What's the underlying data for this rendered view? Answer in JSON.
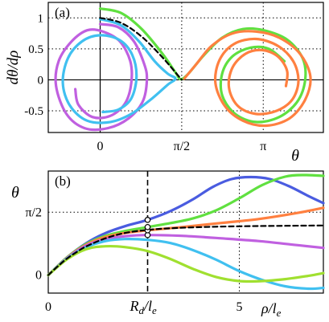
{
  "chart_data": [
    {
      "type": "line",
      "panel_label": "(a)",
      "xlabel": "θ",
      "ylabel": "dθ/dρ",
      "xlim": [
        -1.0,
        4.3
      ],
      "ylim": [
        -0.85,
        1.25
      ],
      "x_ticks": [
        {
          "v": 0,
          "label": "0"
        },
        {
          "v": 1.5708,
          "label": "π/2"
        },
        {
          "v": 3.1416,
          "label": "π"
        }
      ],
      "y_ticks": [
        {
          "v": -0.5,
          "label": "-0.5"
        },
        {
          "v": 0,
          "label": "0"
        },
        {
          "v": 0.5,
          "label": "0.5"
        },
        {
          "v": 1,
          "label": "1"
        }
      ],
      "series": [
        {
          "color": "#c060e0",
          "dash": false,
          "points": [
            [
              0.0,
              0.9
            ],
            [
              0.35,
              0.85
            ],
            [
              0.65,
              0.62
            ],
            [
              0.85,
              0.25
            ],
            [
              0.9,
              0.0
            ],
            [
              0.82,
              -0.35
            ],
            [
              0.55,
              -0.62
            ],
            [
              0.15,
              -0.78
            ],
            [
              -0.3,
              -0.78
            ],
            [
              -0.65,
              -0.55
            ],
            [
              -0.85,
              -0.1
            ],
            [
              -0.8,
              0.3
            ],
            [
              -0.55,
              0.62
            ],
            [
              -0.25,
              0.8
            ],
            [
              0.05,
              0.78
            ],
            [
              0.38,
              0.62
            ],
            [
              0.58,
              0.3
            ],
            [
              0.6,
              -0.05
            ],
            [
              0.48,
              -0.38
            ],
            [
              0.2,
              -0.58
            ],
            [
              -0.15,
              -0.6
            ],
            [
              -0.42,
              -0.4
            ],
            [
              -0.48,
              -0.15
            ]
          ]
        },
        {
          "color": "#40c0f0",
          "dash": false,
          "points": [
            [
              0.0,
              0.98
            ],
            [
              0.4,
              0.88
            ],
            [
              0.75,
              0.62
            ],
            [
              1.05,
              0.3
            ],
            [
              1.3,
              0.1
            ],
            [
              1.45,
              0.02
            ],
            [
              1.3,
              -0.08
            ],
            [
              1.0,
              -0.3
            ],
            [
              0.6,
              -0.55
            ],
            [
              0.2,
              -0.68
            ],
            [
              -0.25,
              -0.66
            ],
            [
              -0.58,
              -0.42
            ],
            [
              -0.72,
              -0.05
            ],
            [
              -0.62,
              0.35
            ],
            [
              -0.35,
              0.62
            ],
            [
              0.0,
              0.72
            ],
            [
              0.38,
              0.64
            ],
            [
              0.62,
              0.4
            ],
            [
              0.7,
              0.05
            ],
            [
              0.6,
              -0.3
            ],
            [
              0.35,
              -0.48
            ],
            [
              0.05,
              -0.52
            ]
          ]
        },
        {
          "color": "#60e040",
          "dash": false,
          "points": [
            [
              0.0,
              1.15
            ],
            [
              0.4,
              1.08
            ],
            [
              0.8,
              0.82
            ],
            [
              1.2,
              0.42
            ],
            [
              1.45,
              0.12
            ],
            [
              1.55,
              0.01
            ],
            [
              1.7,
              0.1
            ],
            [
              2.0,
              0.4
            ],
            [
              2.35,
              0.68
            ],
            [
              2.75,
              0.82
            ],
            [
              3.15,
              0.8
            ],
            [
              3.6,
              0.65
            ],
            [
              3.9,
              0.35
            ],
            [
              3.95,
              0.0
            ],
            [
              3.8,
              -0.35
            ],
            [
              3.45,
              -0.6
            ],
            [
              3.0,
              -0.68
            ],
            [
              2.6,
              -0.55
            ],
            [
              2.35,
              -0.25
            ],
            [
              2.35,
              0.1
            ],
            [
              2.55,
              0.38
            ],
            [
              2.9,
              0.52
            ],
            [
              3.25,
              0.5
            ],
            [
              3.55,
              0.3
            ]
          ]
        },
        {
          "color": "#ff8040",
          "dash": false,
          "points": [
            [
              1.62,
              0.02
            ],
            [
              1.85,
              0.25
            ],
            [
              2.15,
              0.55
            ],
            [
              2.55,
              0.75
            ],
            [
              3.0,
              0.78
            ],
            [
              3.45,
              0.68
            ],
            [
              3.85,
              0.42
            ],
            [
              4.05,
              0.05
            ],
            [
              3.95,
              -0.32
            ],
            [
              3.65,
              -0.62
            ],
            [
              3.2,
              -0.74
            ],
            [
              2.75,
              -0.66
            ],
            [
              2.4,
              -0.42
            ],
            [
              2.22,
              -0.05
            ],
            [
              2.3,
              0.32
            ],
            [
              2.58,
              0.58
            ],
            [
              3.0,
              0.66
            ],
            [
              3.42,
              0.55
            ],
            [
              3.72,
              0.3
            ],
            [
              3.82,
              -0.02
            ],
            [
              3.7,
              -0.32
            ],
            [
              3.4,
              -0.5
            ],
            [
              3.0,
              -0.55
            ],
            [
              2.65,
              -0.42
            ],
            [
              2.48,
              -0.12
            ],
            [
              2.55,
              0.2
            ],
            [
              2.8,
              0.42
            ],
            [
              3.12,
              0.48
            ],
            [
              3.42,
              0.38
            ],
            [
              3.6,
              0.15
            ],
            [
              3.58,
              -0.1
            ]
          ]
        },
        {
          "color": "#000000",
          "dash": true,
          "points": [
            [
              0.0,
              1.0
            ],
            [
              0.3927,
              0.9239
            ],
            [
              0.7854,
              0.7071
            ],
            [
              1.1781,
              0.3827
            ],
            [
              1.5708,
              0.0
            ]
          ]
        }
      ]
    },
    {
      "type": "line",
      "panel_label": "(b)",
      "xlabel": "ρ/l",
      "xlabel_sub": "e",
      "ylabel": "θ",
      "xlim": [
        0,
        7.2
      ],
      "ylim": [
        -0.45,
        2.6
      ],
      "x_ticks": [
        {
          "v": 0,
          "label": "0"
        },
        {
          "v": 5,
          "label": "5"
        }
      ],
      "x_special": {
        "v": 2.6,
        "label": "R",
        "sub1": "d",
        "mid": "/l",
        "sub2": "e"
      },
      "y_ticks": [
        {
          "v": 0,
          "label": "0"
        },
        {
          "v": 1.5708,
          "label": "π/2"
        }
      ],
      "marker_x": 2.6,
      "marker_values": [
        1.0,
        1.12,
        1.2,
        1.38
      ],
      "series": [
        {
          "color": "#4a5ce0",
          "dash": false,
          "points": [
            [
              0,
              0
            ],
            [
              0.5,
              0.45
            ],
            [
              1.0,
              0.8
            ],
            [
              1.5,
              1.05
            ],
            [
              2.0,
              1.22
            ],
            [
              2.6,
              1.38
            ],
            [
              3.2,
              1.6
            ],
            [
              3.8,
              1.9
            ],
            [
              4.3,
              2.2
            ],
            [
              4.8,
              2.4
            ],
            [
              5.3,
              2.45
            ],
            [
              5.8,
              2.4
            ],
            [
              6.3,
              2.22
            ],
            [
              6.8,
              1.98
            ],
            [
              7.2,
              1.8
            ]
          ]
        },
        {
          "color": "#60e040",
          "dash": false,
          "points": [
            [
              0,
              0
            ],
            [
              0.5,
              0.45
            ],
            [
              1.0,
              0.78
            ],
            [
              1.5,
              0.98
            ],
            [
              2.0,
              1.1
            ],
            [
              2.6,
              1.2
            ],
            [
              3.2,
              1.3
            ],
            [
              3.8,
              1.42
            ],
            [
              4.4,
              1.62
            ],
            [
              5.0,
              1.92
            ],
            [
              5.6,
              2.25
            ],
            [
              6.2,
              2.46
            ],
            [
              6.7,
              2.5
            ],
            [
              7.2,
              2.48
            ]
          ]
        },
        {
          "color": "#ff8040",
          "dash": false,
          "points": [
            [
              0,
              0
            ],
            [
              0.5,
              0.44
            ],
            [
              1.0,
              0.76
            ],
            [
              1.5,
              0.95
            ],
            [
              2.0,
              1.05
            ],
            [
              2.6,
              1.12
            ],
            [
              3.5,
              1.2
            ],
            [
              4.5,
              1.3
            ],
            [
              5.5,
              1.4
            ],
            [
              6.5,
              1.55
            ],
            [
              7.2,
              1.68
            ]
          ]
        },
        {
          "color": "#c060e0",
          "dash": false,
          "points": [
            [
              0,
              0
            ],
            [
              0.5,
              0.43
            ],
            [
              1.0,
              0.74
            ],
            [
              1.5,
              0.9
            ],
            [
              2.0,
              0.97
            ],
            [
              2.6,
              1.0
            ],
            [
              3.5,
              0.98
            ],
            [
              4.5,
              0.92
            ],
            [
              5.5,
              0.85
            ],
            [
              6.5,
              0.75
            ],
            [
              7.2,
              0.68
            ]
          ]
        },
        {
          "color": "#40c0f0",
          "dash": false,
          "points": [
            [
              0,
              0
            ],
            [
              0.5,
              0.42
            ],
            [
              1.0,
              0.7
            ],
            [
              1.5,
              0.85
            ],
            [
              2.0,
              0.9
            ],
            [
              2.6,
              0.88
            ],
            [
              3.2,
              0.8
            ],
            [
              3.8,
              0.62
            ],
            [
              4.4,
              0.38
            ],
            [
              5.0,
              0.1
            ],
            [
              5.6,
              -0.12
            ],
            [
              6.2,
              -0.28
            ],
            [
              6.8,
              -0.34
            ],
            [
              7.2,
              -0.32
            ]
          ]
        },
        {
          "color": "#a0e030",
          "dash": false,
          "points": [
            [
              0,
              0
            ],
            [
              0.5,
              0.4
            ],
            [
              1.0,
              0.65
            ],
            [
              1.5,
              0.72
            ],
            [
              2.0,
              0.7
            ],
            [
              2.6,
              0.6
            ],
            [
              3.2,
              0.4
            ],
            [
              3.8,
              0.15
            ],
            [
              4.4,
              -0.05
            ],
            [
              5.0,
              -0.15
            ],
            [
              5.6,
              -0.15
            ],
            [
              6.2,
              -0.1
            ],
            [
              6.8,
              -0.02
            ],
            [
              7.2,
              0.05
            ]
          ]
        },
        {
          "color": "#000000",
          "dash": true,
          "points": [
            [
              0,
              0
            ],
            [
              0.25,
              0.22
            ],
            [
              0.5,
              0.42
            ],
            [
              0.75,
              0.58
            ],
            [
              1.0,
              0.72
            ],
            [
              1.5,
              0.92
            ],
            [
              2.0,
              1.05
            ],
            [
              2.6,
              1.13
            ],
            [
              3.2,
              1.17
            ],
            [
              4.0,
              1.2
            ],
            [
              5.0,
              1.22
            ],
            [
              6.0,
              1.23
            ],
            [
              7.2,
              1.24
            ]
          ]
        }
      ]
    }
  ]
}
